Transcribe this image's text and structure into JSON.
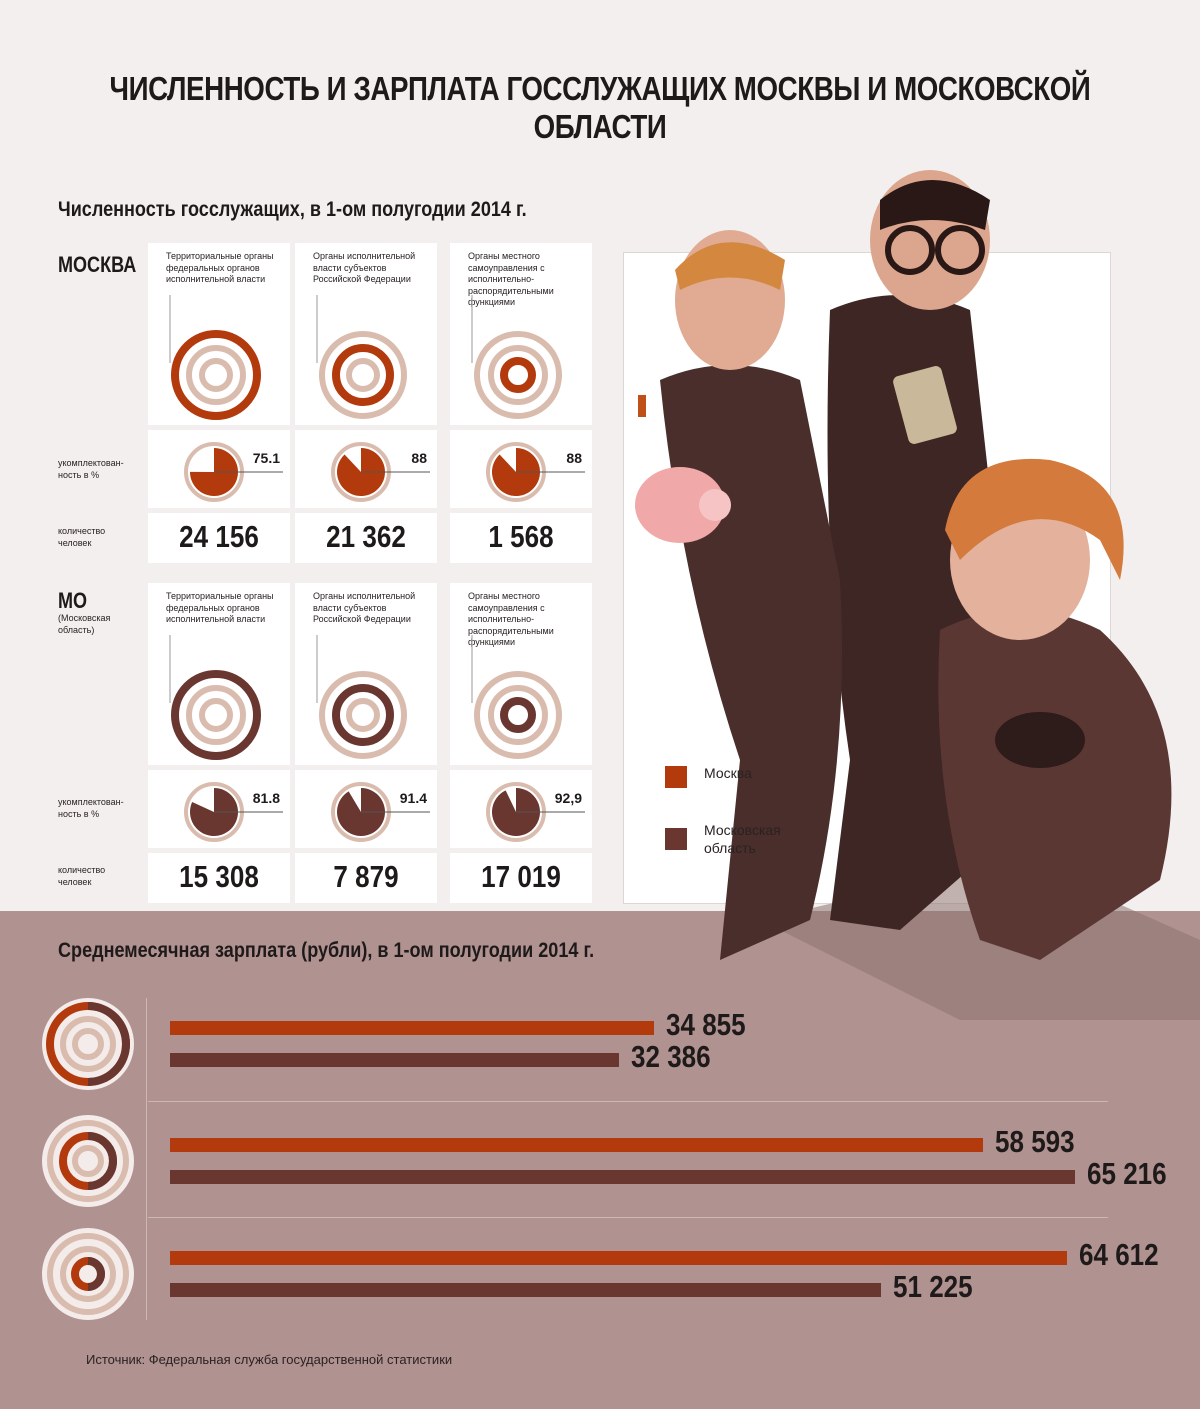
{
  "title": "ЧИСЛЕННОСТЬ И ЗАРПЛАТА ГОССЛУЖАЩИХ МОСКВЫ И МОСКОВСКОЙ ОБЛАСТИ",
  "colors": {
    "moscow": "#b23a0c",
    "mo": "#6a3630",
    "ring": "#d9bcae",
    "bg_bottom": "#b09291"
  },
  "headcount": {
    "heading": "Численность госслужащих, в 1-ом полугодии 2014 г.",
    "row_labels": {
      "staffing": "укомплектован-\nность в %",
      "people": "количество\nчеловек"
    },
    "columns": [
      "Территориальные органы федеральных органов исполнительной власти",
      "Органы исполнительной власти субъектов Российской Федерации",
      "Органы местного самоуправления с исполнительно-распорядительными функциями"
    ],
    "moscow": {
      "name": "МОСКВА",
      "sub": ""
    },
    "mo": {
      "name": "МО",
      "sub": "(Московская область)"
    },
    "legend": {
      "moscow": "Москва",
      "mo": "Московская область"
    }
  },
  "salary": {
    "heading": "Среднемесячная зарплата (рубли), в 1-ом полугодии 2014 г.",
    "source": "Источник: Федеральная служба государственной статистики"
  },
  "chart_data": [
    {
      "type": "table",
      "title": "Численность госслужащих, в 1-ом полугодии 2014 г.",
      "categories": [
        "Территориальные органы федеральных органов исполнительной власти",
        "Органы исполнительной власти субъектов Российской Федерации",
        "Органы местного самоуправления с исполнительно-распорядительными функциями"
      ],
      "series": [
        {
          "name": "МОСКВА",
          "staffing_pct": [
            75.1,
            88,
            88
          ],
          "staffing_labels": [
            "75.1",
            "88",
            "88"
          ],
          "people": [
            24156,
            21362,
            1568
          ],
          "people_labels": [
            "24 156",
            "21 362",
            "1 568"
          ]
        },
        {
          "name": "МО",
          "staffing_pct": [
            81.8,
            91.4,
            92.9
          ],
          "staffing_labels": [
            "81.8",
            "91.4",
            "92,9"
          ],
          "people": [
            15308,
            7879,
            17019
          ],
          "people_labels": [
            "15 308",
            "7 879",
            "17 019"
          ]
        }
      ]
    },
    {
      "type": "bar",
      "title": "Среднемесячная зарплата (рубли), в 1-ом полугодии 2014 г.",
      "categories": [
        "Территориальные органы федеральных органов исполнительной власти",
        "Органы исполнительной власти субъектов Российской Федерации",
        "Органы местного самоуправления с исполнительно-распорядительными функциями"
      ],
      "series": [
        {
          "name": "Москва",
          "values": [
            34855,
            58593,
            64612
          ],
          "labels": [
            "34 855",
            "58 593",
            "64 612"
          ]
        },
        {
          "name": "Московская область",
          "values": [
            32386,
            65216,
            51225
          ],
          "labels": [
            "32 386",
            "65 216",
            "51 225"
          ]
        }
      ]
    }
  ]
}
